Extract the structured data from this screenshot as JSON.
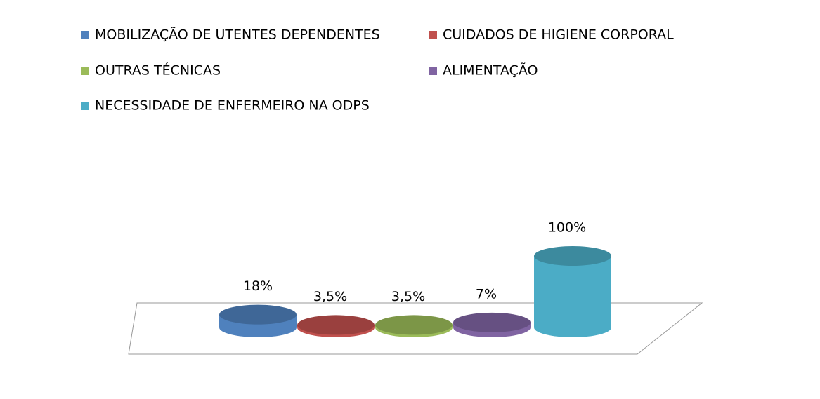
{
  "chart_data": {
    "type": "cylinder",
    "series": [
      {
        "name": "MOBILIZAÇÃO DE UTENTES DEPENDENTES",
        "color": "#4f81bd",
        "values": [
          18
        ],
        "value_labels": [
          "18%"
        ]
      },
      {
        "name": "CUIDADOS DE HIGIENE CORPORAL",
        "color": "#c0504d",
        "values": [
          3.5
        ],
        "value_labels": [
          "3,5%"
        ]
      },
      {
        "name": "OUTRAS TÉCNICAS",
        "color": "#9bbb59",
        "values": [
          3.5
        ],
        "value_labels": [
          "3,5%"
        ]
      },
      {
        "name": "ALIMENTAÇÃO",
        "color": "#8064a2",
        "values": [
          7
        ],
        "value_labels": [
          "7%"
        ]
      },
      {
        "name": "NECESSIDADE DE ENFERMEIRO NA ODPS",
        "color": "#4bacc6",
        "values": [
          100
        ],
        "value_labels": [
          "100%"
        ]
      }
    ],
    "legend": "top"
  }
}
